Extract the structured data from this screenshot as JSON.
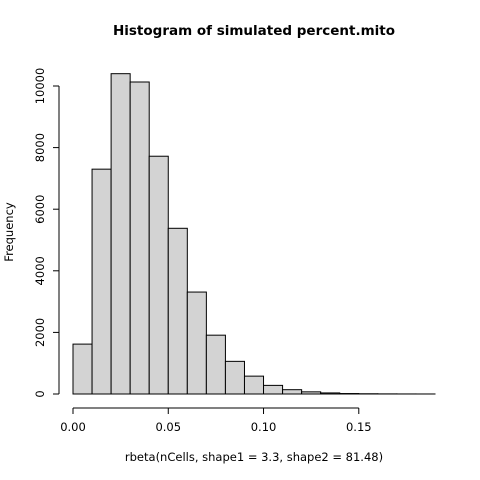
{
  "chart_data": {
    "type": "bar",
    "title": "Histogram of simulated percent.mito",
    "xlabel": "rbeta(nCells, shape1 = 3.3, shape2 = 81.48)",
    "ylabel": "Frequency",
    "bin_width": 0.01,
    "bins": [
      {
        "start": 0.0,
        "end": 0.01,
        "value": 1620
      },
      {
        "start": 0.01,
        "end": 0.02,
        "value": 7300
      },
      {
        "start": 0.02,
        "end": 0.03,
        "value": 10400
      },
      {
        "start": 0.03,
        "end": 0.04,
        "value": 10130
      },
      {
        "start": 0.04,
        "end": 0.05,
        "value": 7720
      },
      {
        "start": 0.05,
        "end": 0.06,
        "value": 5380
      },
      {
        "start": 0.06,
        "end": 0.07,
        "value": 3310
      },
      {
        "start": 0.07,
        "end": 0.08,
        "value": 1910
      },
      {
        "start": 0.08,
        "end": 0.09,
        "value": 1060
      },
      {
        "start": 0.09,
        "end": 0.1,
        "value": 580
      },
      {
        "start": 0.1,
        "end": 0.11,
        "value": 280
      },
      {
        "start": 0.11,
        "end": 0.12,
        "value": 140
      },
      {
        "start": 0.12,
        "end": 0.13,
        "value": 70
      },
      {
        "start": 0.13,
        "end": 0.14,
        "value": 35
      },
      {
        "start": 0.14,
        "end": 0.15,
        "value": 15
      },
      {
        "start": 0.15,
        "end": 0.16,
        "value": 8
      },
      {
        "start": 0.16,
        "end": 0.17,
        "value": 4
      },
      {
        "start": 0.17,
        "end": 0.18,
        "value": 2
      },
      {
        "start": 0.18,
        "end": 0.19,
        "value": 1
      }
    ],
    "x_ticks": [
      0.0,
      0.05,
      0.1,
      0.15
    ],
    "x_tick_labels": [
      "0.00",
      "0.05",
      "0.10",
      "0.15"
    ],
    "y_ticks": [
      0,
      2000,
      4000,
      6000,
      8000,
      10000
    ],
    "y_tick_labels": [
      "0",
      "2000",
      "4000",
      "6000",
      "8000",
      "10000"
    ],
    "xlim": [
      0.0,
      0.19
    ],
    "ylim": [
      0,
      10000
    ],
    "grid": false,
    "colors": {
      "bar_fill": "#d3d3d3",
      "bar_stroke": "#000000",
      "axis": "#000000"
    }
  }
}
